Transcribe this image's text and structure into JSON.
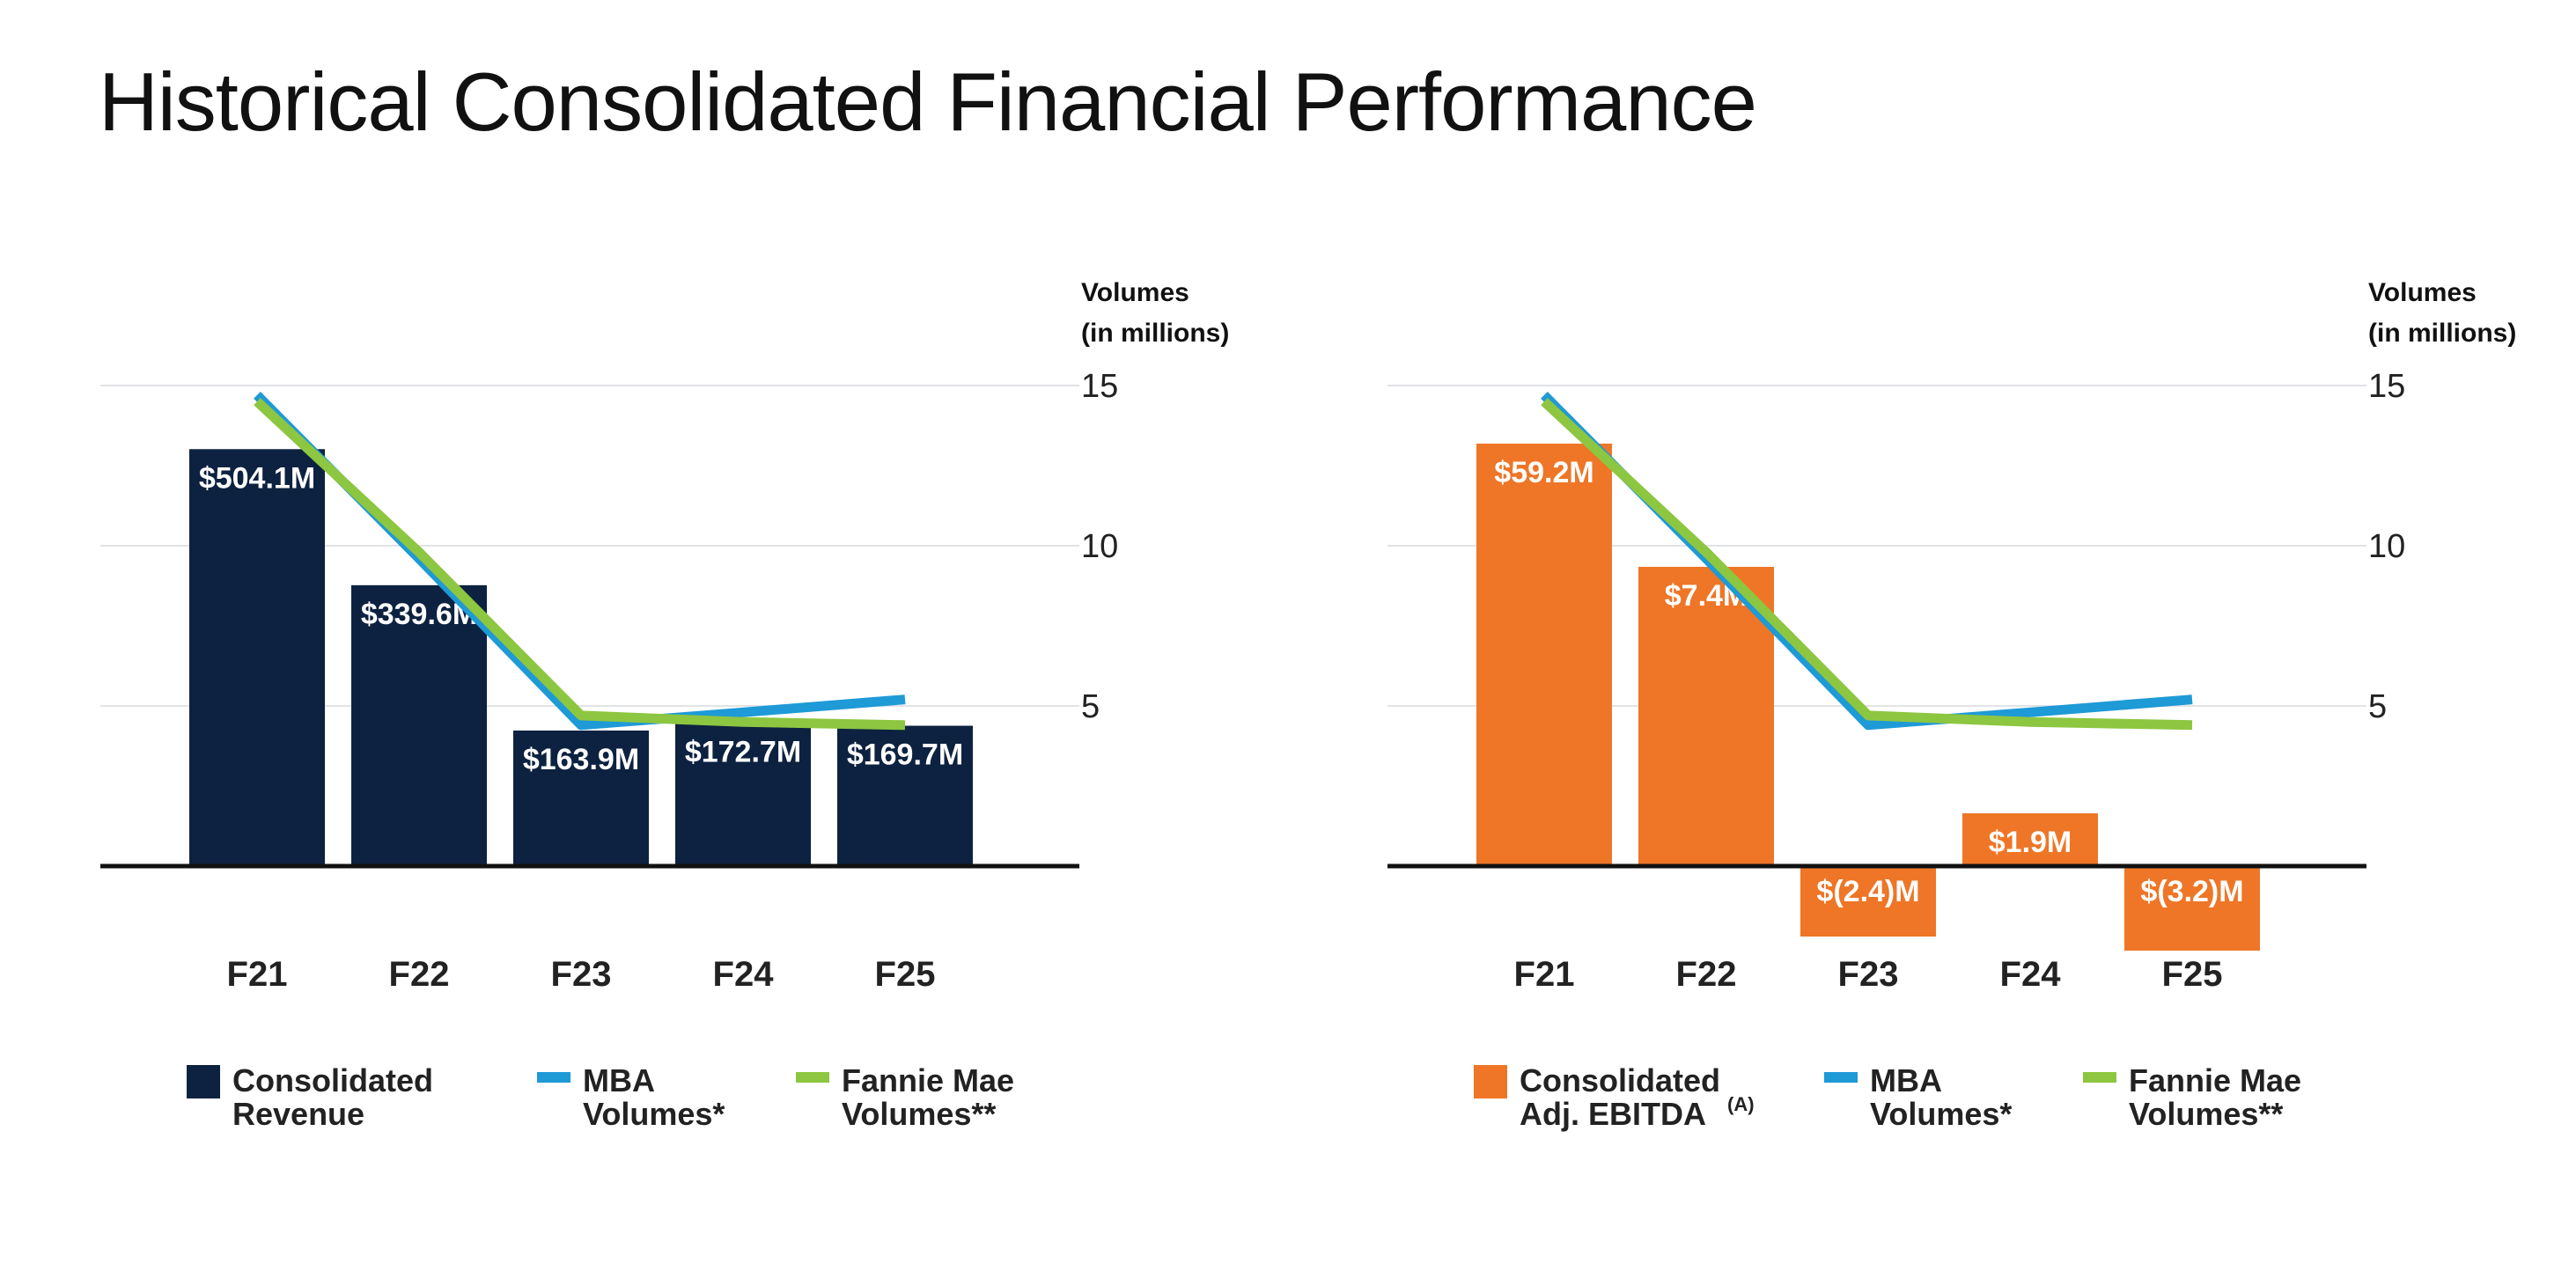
{
  "page": {
    "title": "Historical Consolidated Financial Performance"
  },
  "colors": {
    "revenue": "#0d2240",
    "ebitda": "#ee7626",
    "mba": "#1e9ad6",
    "fannie": "#8dc640",
    "label": "#ffffff"
  },
  "chart_data": [
    {
      "type": "bar",
      "categories": [
        "F21",
        "F22",
        "F23",
        "F24",
        "F25"
      ],
      "series": [
        {
          "name": "Consolidated Revenue",
          "axis": "left",
          "values": [
            504.1,
            339.6,
            163.9,
            172.7,
            169.7
          ],
          "labels": [
            "$504.1M",
            "$339.6M",
            "$163.9M",
            "$172.7M",
            "$169.7M"
          ]
        },
        {
          "name": "MBA Volumes*",
          "type": "line",
          "axis": "right",
          "values": [
            14.7,
            9.6,
            4.4,
            4.8,
            5.2
          ]
        },
        {
          "name": "Fannie Mae Volumes**",
          "type": "line",
          "axis": "right",
          "values": [
            14.5,
            9.8,
            4.7,
            4.5,
            4.4
          ]
        }
      ],
      "y_left_range": [
        0,
        581
      ],
      "y_right": {
        "title_line1": "Volumes",
        "title_line2": "(in millions)",
        "ticks": [
          15,
          10,
          5
        ],
        "range": [
          0,
          15
        ]
      },
      "legend": [
        {
          "lines": [
            "Consolidated",
            "Revenue"
          ],
          "kind": "box"
        },
        {
          "lines": [
            "MBA",
            "Volumes*"
          ],
          "kind": "line"
        },
        {
          "lines": [
            "Fannie Mae",
            "Volumes**"
          ],
          "kind": "line"
        }
      ]
    },
    {
      "type": "bar",
      "categories": [
        "F21",
        "F22",
        "F23",
        "F24",
        "F25"
      ],
      "series": [
        {
          "name": "Consolidated Adj. EBITDA(A)",
          "axis": "left",
          "values": [
            59.2,
            7.4,
            -2.4,
            1.9,
            -3.2
          ],
          "labels": [
            "$59.2M",
            "$7.4M",
            "$(2.4)M",
            "$1.9M",
            "$(3.2)M"
          ],
          "display_heights": [
            12,
            8.5,
            -2,
            1.5,
            -2.4
          ]
        },
        {
          "name": "MBA Volumes*",
          "type": "line",
          "axis": "right",
          "values": [
            14.7,
            9.6,
            4.4,
            4.8,
            5.2
          ]
        },
        {
          "name": "Fannie Mae Volumes**",
          "type": "line",
          "axis": "right",
          "values": [
            14.5,
            9.8,
            4.7,
            4.5,
            4.4
          ]
        }
      ],
      "y_right": {
        "title_line1": "Volumes",
        "title_line2": "(in millions)",
        "ticks": [
          15,
          10,
          5
        ],
        "range": [
          0,
          15
        ]
      },
      "legend": [
        {
          "lines": [
            "Consolidated",
            "Adj. EBITDA"
          ],
          "sup": "(A)",
          "kind": "box"
        },
        {
          "lines": [
            "MBA",
            "Volumes*"
          ],
          "kind": "line"
        },
        {
          "lines": [
            "Fannie Mae",
            "Volumes**"
          ],
          "kind": "line"
        }
      ]
    }
  ]
}
